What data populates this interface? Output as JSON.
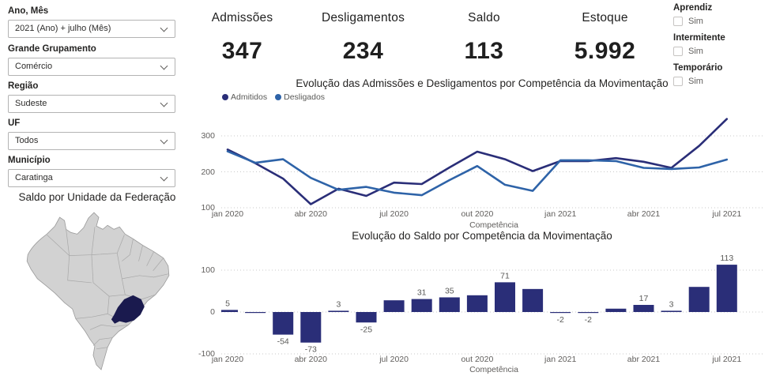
{
  "sidebar": {
    "filters": [
      {
        "label": "Ano, Mês",
        "value": "2021 (Ano) + julho (Mês)"
      },
      {
        "label": "Grande Grupamento",
        "value": "Comércio"
      },
      {
        "label": "Região",
        "value": "Sudeste"
      },
      {
        "label": "UF",
        "value": "Todos"
      },
      {
        "label": "Município",
        "value": "Caratinga"
      }
    ],
    "map_title": "Saldo por Unidade da Federação",
    "map_highlighted_state_color": "#1A1A4E",
    "map_state_color": "#D2D2D2",
    "map_border_color": "#9a9a9a"
  },
  "kpis": [
    {
      "label": "Admissões",
      "value": "347"
    },
    {
      "label": "Desligamentos",
      "value": "234"
    },
    {
      "label": "Saldo",
      "value": "113"
    },
    {
      "label": "Estoque",
      "value": "5.992"
    }
  ],
  "toggles": [
    {
      "label": "Aprendiz",
      "option": "Sim",
      "checked": false
    },
    {
      "label": "Intermitente",
      "option": "Sim",
      "checked": false
    },
    {
      "label": "Temporário",
      "option": "Sim",
      "checked": false
    }
  ],
  "chart_data": [
    {
      "type": "line",
      "title": "Evolução das Admissões e Desligamentos por Competência da Movimentação",
      "xlabel": "Competência",
      "ylabel": "",
      "x": [
        "jan 2020",
        "fev 2020",
        "mar 2020",
        "abr 2020",
        "mai 2020",
        "jun 2020",
        "jul 2020",
        "ago 2020",
        "set 2020",
        "out 2020",
        "nov 2020",
        "dez 2020",
        "jan 2021",
        "fev 2021",
        "mar 2021",
        "abr 2021",
        "mai 2021",
        "jun 2021",
        "jul 2021"
      ],
      "x_ticks_shown": [
        "jan 2020",
        "abr 2020",
        "jul 2020",
        "out 2020",
        "jan 2021",
        "abr 2021",
        "jul 2021"
      ],
      "y_ticks": [
        300,
        200,
        100
      ],
      "ylim": [
        100,
        360
      ],
      "grid": "dotted horizontal",
      "legend_position": "top-left",
      "series": [
        {
          "name": "Admitidos",
          "color": "#2A2E78",
          "values": [
            262,
            224,
            181,
            110,
            153,
            133,
            170,
            166,
            212,
            256,
            235,
            202,
            230,
            230,
            238,
            228,
            211,
            272,
            347
          ]
        },
        {
          "name": "Desligados",
          "color": "#2E63A8",
          "values": [
            257,
            225,
            235,
            183,
            150,
            158,
            142,
            135,
            177,
            216,
            164,
            147,
            232,
            232,
            230,
            211,
            208,
            212,
            234
          ]
        }
      ]
    },
    {
      "type": "bar",
      "title": "Evolução do Saldo por Competência da Movimentação",
      "xlabel": "Competência",
      "ylabel": "",
      "x": [
        "jan 2020",
        "fev 2020",
        "mar 2020",
        "abr 2020",
        "mai 2020",
        "jun 2020",
        "jul 2020",
        "ago 2020",
        "set 2020",
        "out 2020",
        "nov 2020",
        "dez 2020",
        "jan 2021",
        "fev 2021",
        "mar 2021",
        "abr 2021",
        "mai 2021",
        "jun 2021",
        "jul 2021"
      ],
      "x_ticks_shown": [
        "jul 2020",
        "out 2020",
        "jan 2021",
        "abr 2021",
        "jul 2021",
        "jan 2020",
        "abr 2020"
      ],
      "x_tick_labels": [
        "jan 2020",
        "abr 2020",
        "jul 2020",
        "out 2020",
        "jan 2021",
        "abr 2021",
        "jul 2021"
      ],
      "y_ticks": [
        100,
        0,
        -100
      ],
      "ylim": [
        -100,
        130
      ],
      "grid": "dotted horizontal",
      "bar_color": "#2A2E78",
      "values": [
        5,
        -1,
        -54,
        -73,
        3,
        -25,
        28,
        31,
        35,
        40,
        71,
        55,
        -2,
        -2,
        8,
        17,
        3,
        60,
        113
      ],
      "data_labels": [
        "5",
        null,
        "-54",
        "-73",
        "3",
        "-25",
        null,
        "31",
        "35",
        null,
        "71",
        null,
        "-2",
        "-2",
        null,
        "17",
        "3",
        null,
        "113"
      ]
    }
  ]
}
